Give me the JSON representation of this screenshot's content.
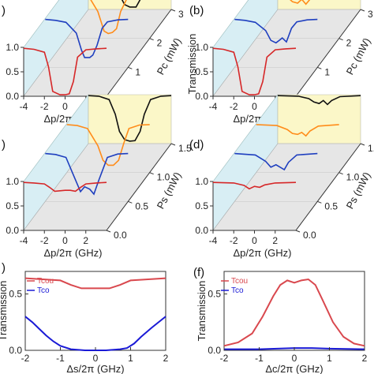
{
  "panels": {
    "a": {
      "label": ")"
    },
    "b": {
      "label": "(b)"
    },
    "c": {
      "label": ")"
    },
    "d": {
      "label": "(d)"
    },
    "e": {
      "label": ")"
    },
    "f": {
      "label": "(f)"
    }
  },
  "chart_data": [
    {
      "panel": "a",
      "type": "line",
      "xlabel": "Δp/2π (GHz)",
      "ylabel": "",
      "depth_label": "Pc (mW)",
      "xticks": [
        "-4",
        "-2",
        "0",
        "2"
      ],
      "yticks": [
        "0.0",
        "0.5",
        "1.0"
      ],
      "depth_ticks": [
        "0",
        "1",
        "2",
        "3"
      ],
      "xlim": [
        -4,
        4
      ],
      "ylim": [
        0,
        1
      ],
      "series": [
        {
          "depth": 0,
          "color": "#d62728",
          "x": [
            -4,
            -3,
            -2,
            -1.6,
            -1.2,
            -0.5,
            0,
            0.4,
            0.8,
            1.2,
            2,
            3,
            4
          ],
          "y": [
            0.98,
            0.96,
            0.9,
            0.6,
            0.1,
            0.03,
            0.03,
            0.05,
            0.3,
            0.8,
            0.95,
            0.97,
            0.98
          ]
        },
        {
          "depth": 1,
          "color": "#1f3fbf",
          "x": [
            -4,
            -3,
            -2,
            -1,
            -0.5,
            -0.2,
            0.3,
            0.6,
            1.0,
            1.5,
            2,
            3,
            4
          ],
          "y": [
            0.98,
            0.96,
            0.92,
            0.7,
            0.35,
            0.2,
            0.2,
            0.25,
            0.45,
            0.8,
            0.93,
            0.97,
            0.98
          ]
        },
        {
          "depth": 2,
          "color": "#ff8c1a",
          "x": [
            -4,
            -3,
            -2,
            -1,
            -0.4,
            0,
            0.4,
            0.8,
            1.2,
            2,
            3,
            4
          ],
          "y": [
            0.98,
            0.96,
            0.9,
            0.55,
            0.15,
            0.1,
            0.12,
            0.2,
            0.55,
            0.9,
            0.97,
            0.98
          ]
        },
        {
          "depth": 3,
          "color": "#111111",
          "x": [
            -4,
            -3,
            -2,
            -1.5,
            -1,
            -0.5,
            0,
            0.6,
            1.0,
            1.4,
            2,
            3,
            4
          ],
          "y": [
            0.98,
            0.97,
            0.9,
            0.7,
            0.3,
            0.1,
            0.05,
            0.05,
            0.2,
            0.6,
            0.9,
            0.97,
            0.98
          ]
        }
      ]
    },
    {
      "panel": "b",
      "type": "line",
      "xlabel": "Δp/2π (GHz)",
      "ylabel": "Transmission",
      "depth_label": "Pc (mW)",
      "xticks": [
        "-4",
        "-2",
        "0",
        "2"
      ],
      "yticks": [
        "0.0",
        "0.5",
        "1.0"
      ],
      "depth_ticks": [
        "0",
        "1",
        "2",
        "3"
      ],
      "xlim": [
        -4,
        4
      ],
      "ylim": [
        0,
        1
      ],
      "series": [
        {
          "depth": 0,
          "color": "#d62728",
          "x": [
            -4,
            -3,
            -2,
            -1.6,
            -1.2,
            -0.5,
            0,
            0.4,
            0.8,
            1.2,
            2,
            3,
            4
          ],
          "y": [
            0.98,
            0.96,
            0.9,
            0.6,
            0.1,
            0.03,
            0.03,
            0.05,
            0.3,
            0.8,
            0.95,
            0.97,
            0.98
          ]
        },
        {
          "depth": 1,
          "color": "#1f3fbf",
          "x": [
            -4,
            -3,
            -2,
            -1,
            -0.5,
            0,
            0.3,
            0.6,
            1.0,
            1.5,
            2,
            3,
            4
          ],
          "y": [
            0.98,
            0.96,
            0.92,
            0.75,
            0.55,
            0.5,
            0.55,
            0.6,
            0.52,
            0.8,
            0.93,
            0.97,
            0.98
          ]
        },
        {
          "depth": 2,
          "color": "#ff8c1a",
          "x": [
            -4,
            -3,
            -2,
            -1,
            -0.5,
            0,
            0.4,
            0.8,
            1.2,
            2,
            3,
            4
          ],
          "y": [
            0.98,
            0.97,
            0.95,
            0.85,
            0.75,
            0.72,
            0.8,
            0.7,
            0.8,
            0.92,
            0.97,
            0.98
          ]
        },
        {
          "depth": 3,
          "color": "#111111",
          "x": [
            -4,
            -3,
            -2,
            -1,
            -0.5,
            0,
            0.4,
            0.8,
            1.2,
            2,
            3,
            4
          ],
          "y": [
            0.98,
            0.98,
            0.97,
            0.9,
            0.85,
            0.82,
            0.9,
            0.84,
            0.9,
            0.95,
            0.97,
            0.98
          ]
        }
      ]
    },
    {
      "panel": "c",
      "type": "line",
      "xlabel": "Δp/2π (GHz)",
      "ylabel": "",
      "depth_label": "Ps (mW)",
      "xticks": [
        "-4",
        "-2",
        "0",
        "2"
      ],
      "yticks": [
        "0.0",
        "0.5",
        "1.0"
      ],
      "depth_ticks": [
        "0.0",
        "0.5",
        "1.0",
        "1.5"
      ],
      "xlim": [
        -4,
        4
      ],
      "ylim": [
        0,
        1
      ],
      "series": [
        {
          "depth": 0,
          "color": "#d62728",
          "x": [
            -4,
            -3,
            -2,
            -1.5,
            -1,
            0,
            0.5,
            1,
            1.5,
            2,
            3,
            4
          ],
          "y": [
            0.98,
            0.97,
            0.95,
            0.88,
            0.8,
            0.82,
            0.82,
            0.8,
            0.88,
            0.95,
            0.97,
            0.98
          ]
        },
        {
          "depth": 1,
          "color": "#1f3fbf",
          "x": [
            -4,
            -3,
            -2,
            -1.2,
            -0.6,
            -0.2,
            0.3,
            0.7,
            1.2,
            2,
            3,
            4
          ],
          "y": [
            0.98,
            0.96,
            0.9,
            0.5,
            0.2,
            0.3,
            0.25,
            0.15,
            0.45,
            0.9,
            0.97,
            0.98
          ]
        },
        {
          "depth": 2,
          "color": "#ff8c1a",
          "x": [
            -4,
            -3,
            -2,
            -1,
            -0.5,
            0,
            0.5,
            1,
            1.5,
            2,
            3,
            4
          ],
          "y": [
            0.98,
            0.96,
            0.9,
            0.55,
            0.25,
            0.15,
            0.15,
            0.25,
            0.6,
            0.9,
            0.97,
            0.98
          ]
        },
        {
          "depth": 3,
          "color": "#111111",
          "x": [
            -4,
            -3,
            -2,
            -1.4,
            -1,
            -0.5,
            0,
            0.5,
            1,
            1.4,
            2,
            3,
            4
          ],
          "y": [
            0.98,
            0.97,
            0.9,
            0.6,
            0.25,
            0.08,
            0.05,
            0.06,
            0.25,
            0.6,
            0.9,
            0.97,
            0.98
          ]
        }
      ]
    },
    {
      "panel": "d",
      "type": "line",
      "xlabel": "Δp/2π (GHz)",
      "ylabel": "",
      "depth_label": "Ps (mW)",
      "xticks": [
        "-4",
        "-2",
        "0",
        "2"
      ],
      "yticks": [
        "0.0",
        "0.5",
        "1.0"
      ],
      "depth_ticks": [
        "0.0",
        "0.5",
        "1.0",
        "1.5"
      ],
      "xlim": [
        -4,
        4
      ],
      "ylim": [
        0,
        1
      ],
      "series": [
        {
          "depth": 0,
          "color": "#d62728",
          "x": [
            -4,
            -2,
            -1,
            -0.5,
            0,
            0.5,
            1,
            2,
            4
          ],
          "y": [
            0.98,
            0.97,
            0.92,
            0.85,
            0.9,
            0.88,
            0.93,
            0.97,
            0.98
          ]
        },
        {
          "depth": 1,
          "color": "#1f3fbf",
          "x": [
            -4,
            -2,
            -1,
            -0.5,
            0,
            0.4,
            0.8,
            1.2,
            2,
            4
          ],
          "y": [
            0.98,
            0.95,
            0.82,
            0.7,
            0.75,
            0.7,
            0.65,
            0.8,
            0.95,
            0.98
          ]
        },
        {
          "depth": 2,
          "color": "#ff8c1a",
          "x": [
            -4,
            -2,
            -1,
            -0.5,
            0,
            0.4,
            0.8,
            1.2,
            2,
            4
          ],
          "y": [
            0.98,
            0.96,
            0.88,
            0.8,
            0.78,
            0.82,
            0.75,
            0.85,
            0.95,
            0.98
          ]
        },
        {
          "depth": 3,
          "color": "#111111",
          "x": [
            -4,
            -2,
            -1,
            -0.5,
            0,
            0.4,
            0.8,
            1.2,
            2,
            4
          ],
          "y": [
            0.98,
            0.97,
            0.92,
            0.85,
            0.82,
            0.88,
            0.8,
            0.88,
            0.96,
            0.98
          ]
        }
      ]
    },
    {
      "panel": "e",
      "type": "line",
      "xlabel": "Δs/2π (GHz)",
      "ylabel": "Transmission",
      "xticks": [
        "-2",
        "-1",
        "0",
        "1",
        "2"
      ],
      "yticks": [
        "0.0",
        "0.5"
      ],
      "xlim": [
        -2,
        2
      ],
      "ylim": [
        0,
        0.7
      ],
      "series": [
        {
          "name": "Tcou",
          "color": "#d9484e",
          "x": [
            -2,
            -1.5,
            -1,
            -0.7,
            -0.4,
            0,
            0.4,
            0.7,
            1,
            1.5,
            2
          ],
          "y": [
            0.64,
            0.63,
            0.62,
            0.58,
            0.55,
            0.55,
            0.55,
            0.58,
            0.62,
            0.63,
            0.64
          ]
        },
        {
          "name": "Tco",
          "color": "#1a1ad6",
          "x": [
            -2,
            -1.8,
            -1.6,
            -1.4,
            -1.2,
            -1,
            -0.7,
            -0.3,
            0,
            0.3,
            0.7,
            0.9,
            1.1,
            1.3,
            1.6,
            2
          ],
          "y": [
            0.3,
            0.25,
            0.19,
            0.13,
            0.08,
            0.04,
            0.01,
            0.0,
            0.0,
            0.0,
            0.01,
            0.02,
            0.06,
            0.12,
            0.2,
            0.3
          ]
        }
      ]
    },
    {
      "panel": "f",
      "type": "line",
      "xlabel": "Δc/2π (GHz)",
      "ylabel": "Transmission",
      "xticks": [
        "-2",
        "-1",
        "0",
        "1",
        "2"
      ],
      "yticks": [
        "0.0",
        "0.5"
      ],
      "xlim": [
        -2,
        2
      ],
      "ylim": [
        0,
        0.7
      ],
      "series": [
        {
          "name": "Tcou",
          "color": "#d9484e",
          "x": [
            -2,
            -1.6,
            -1.2,
            -0.9,
            -0.6,
            -0.4,
            -0.2,
            0,
            0.2,
            0.4,
            0.6,
            0.8,
            1.1,
            1.4,
            1.7,
            2
          ],
          "y": [
            0.04,
            0.07,
            0.15,
            0.3,
            0.48,
            0.58,
            0.62,
            0.6,
            0.62,
            0.63,
            0.58,
            0.45,
            0.25,
            0.12,
            0.06,
            0.04
          ]
        },
        {
          "name": "Tco",
          "color": "#1a1ad6",
          "x": [
            -2,
            -1,
            -0.5,
            0,
            0.5,
            1,
            2
          ],
          "y": [
            0.01,
            0.01,
            0.015,
            0.02,
            0.02,
            0.015,
            0.01
          ]
        }
      ]
    }
  ]
}
